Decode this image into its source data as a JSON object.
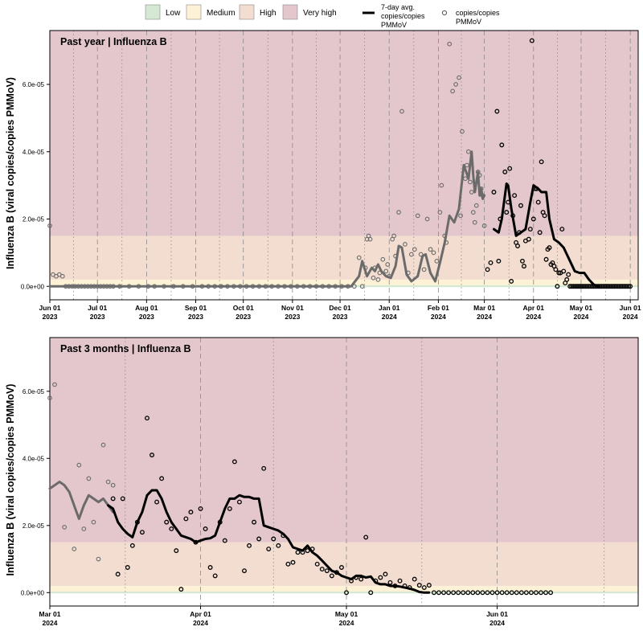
{
  "colors": {
    "low": "#d5e8d4",
    "medium": "#fdf1d6",
    "high": "#f2ddd0",
    "very_high": "#e4c7cc",
    "line_black": "#000000",
    "line_gray": "#6b6b6b"
  },
  "legend": {
    "levels": [
      {
        "label": "Low",
        "color": "#d5e8d4"
      },
      {
        "label": "Medium",
        "color": "#fdf1d6"
      },
      {
        "label": "High",
        "color": "#f2ddd0"
      },
      {
        "label": "Very high",
        "color": "#e4c7cc"
      }
    ],
    "line_label_1": "7-day avg.",
    "line_label_2": "copies/copies",
    "line_label_3": "PMMoV",
    "point_label_1": "copies/copies",
    "point_label_2": "PMMoV"
  },
  "chart_data": [
    {
      "type": "line",
      "title": "Past year  |  Influenza B",
      "ylabel": "Influenza B (viral copies/copies PMMoV)",
      "ylim": [
        -4e-06,
        7.6e-05
      ],
      "yticks": [
        0,
        2e-05,
        4e-05,
        6e-05
      ],
      "ytick_labels": [
        "0.0e+00",
        "2.0e-05",
        "4.0e-05",
        "6.0e-05"
      ],
      "xlim": [
        0,
        371
      ],
      "xticks": [
        {
          "x": 0,
          "label1": "Jun 01",
          "label2": "2023"
        },
        {
          "x": 30,
          "label1": "Jul 01",
          "label2": "2023"
        },
        {
          "x": 61,
          "label1": "Aug 01",
          "label2": "2023"
        },
        {
          "x": 92,
          "label1": "Sep 01",
          "label2": "2023"
        },
        {
          "x": 122,
          "label1": "Oct 01",
          "label2": "2023"
        },
        {
          "x": 153,
          "label1": "Nov 01",
          "label2": "2023"
        },
        {
          "x": 183,
          "label1": "Dec 01",
          "label2": "2023"
        },
        {
          "x": 214,
          "label1": "Jan 01",
          "label2": "2024"
        },
        {
          "x": 245,
          "label1": "Feb 01",
          "label2": "2024"
        },
        {
          "x": 274,
          "label1": "Mar 01",
          "label2": "2024"
        },
        {
          "x": 305,
          "label1": "Apr 01",
          "label2": "2024"
        },
        {
          "x": 335,
          "label1": "May 01",
          "label2": "2024"
        },
        {
          "x": 366,
          "label1": "Jun 01",
          "label2": "2024"
        }
      ],
      "bands": {
        "low_max": 3e-07,
        "medium_max": 2e-06,
        "high_max": 1.5e-05
      },
      "series": [
        {
          "name": "7-day avg. copies/copies PMMoV (older)",
          "color": "#6b6b6b",
          "x": [
            0,
            100,
            150,
            190,
            195,
            197,
            200,
            203,
            205,
            207,
            209,
            212,
            215,
            218,
            220,
            222,
            225,
            228,
            232,
            235,
            237,
            240,
            243,
            246,
            249,
            252,
            255,
            258,
            261,
            264,
            266,
            267,
            268,
            270,
            271,
            272,
            273,
            274
          ],
          "y": [
            0,
            0,
            0,
            0,
            3e-06,
            7.5e-06,
            3e-06,
            5.5e-06,
            4.5e-06,
            6.5e-06,
            4.5e-06,
            3e-06,
            2.5e-06,
            6e-06,
            1.2e-05,
            1.15e-05,
            3.5e-06,
            1.5e-06,
            3e-06,
            9e-06,
            9.5e-06,
            4e-06,
            1.5e-06,
            7e-06,
            1.3e-05,
            2.1e-05,
            1.9e-05,
            2.3e-05,
            3.6e-05,
            3.2e-05,
            4e-05,
            3.3e-05,
            2.8e-05,
            3.4e-05,
            2.7e-05,
            2.9e-05,
            2.6e-05,
            2.7e-05
          ]
        },
        {
          "name": "7-day avg. copies/copies PMMoV (recent)",
          "color": "#000000",
          "x": [
            280,
            283,
            285,
            288,
            289,
            291,
            294,
            297,
            300,
            303,
            305,
            308,
            310,
            313,
            315,
            318,
            321,
            324,
            328,
            331,
            334,
            337,
            340,
            343,
            346
          ],
          "y": [
            1.7e-05,
            1.6e-05,
            2e-05,
            3.05e-05,
            3e-05,
            2.3e-05,
            1.5e-05,
            1.6e-05,
            1.7e-05,
            2.5e-05,
            3e-05,
            2.9e-05,
            2.8e-05,
            2.8e-05,
            2e-05,
            1.4e-05,
            1.3e-05,
            1.15e-05,
            7.5e-06,
            4.5e-06,
            4e-06,
            4e-06,
            2e-06,
            5e-07,
            0
          ]
        }
      ],
      "points_gray": {
        "x": [
          0,
          2,
          4,
          6,
          8,
          10,
          12,
          14,
          16,
          18,
          20,
          22,
          24,
          26,
          28,
          30,
          32,
          34,
          36,
          38,
          40,
          44,
          50,
          56,
          62,
          66,
          72,
          78,
          84,
          90,
          96,
          100,
          104,
          108,
          112,
          116,
          120,
          124,
          128,
          132,
          136,
          140,
          144,
          148,
          152,
          156,
          160,
          164,
          168,
          172,
          176,
          180,
          184,
          188,
          192,
          195,
          197,
          199,
          200,
          201,
          202,
          204,
          205,
          207,
          208,
          210,
          212,
          213,
          214,
          216,
          217,
          218,
          220,
          222,
          224,
          226,
          228,
          230,
          232,
          234,
          236,
          238,
          240,
          242,
          244,
          246,
          247,
          249,
          250,
          252,
          254,
          256,
          258,
          259,
          260,
          262,
          263,
          264,
          265,
          266,
          267,
          268,
          269,
          270,
          271,
          272,
          273,
          274
        ],
        "y": [
          1.8e-05,
          3.5e-06,
          3e-06,
          3.5e-06,
          3e-06,
          0,
          0,
          0,
          0,
          0,
          0,
          0,
          0,
          0,
          0,
          0,
          0,
          0,
          0,
          0,
          0,
          0,
          0,
          0,
          0,
          0,
          0,
          0,
          0,
          0,
          0,
          0,
          0,
          0,
          0,
          0,
          0,
          0,
          0,
          0,
          0,
          0,
          0,
          0,
          0,
          0,
          0,
          0,
          0,
          0,
          0,
          0,
          0,
          0,
          0,
          8.5e-06,
          0,
          5.5e-06,
          1.4e-05,
          1.5e-05,
          1.4e-05,
          2.5e-06,
          5.5e-06,
          2e-06,
          4e-06,
          8e-06,
          4.5e-06,
          6.5e-06,
          3e-06,
          1.4e-05,
          1.5e-05,
          9e-06,
          2.2e-05,
          5.2e-05,
          1.25e-05,
          4e-06,
          9.5e-06,
          1.1e-05,
          2.1e-05,
          9.5e-06,
          5e-06,
          2e-05,
          1.1e-05,
          1e-05,
          7.5e-06,
          2.2e-05,
          3e-05,
          1.5e-05,
          1.3e-05,
          7.2e-05,
          5.8e-05,
          6e-05,
          6.2e-05,
          2.1e-05,
          4.6e-05,
          3.2e-05,
          3.6e-05,
          4e-05,
          3.1e-05,
          2.8e-05,
          2.2e-05,
          1.9e-05,
          2.4e-05,
          3.4e-05,
          3.3e-05,
          2.9e-05,
          2.7e-05,
          1.8e-05
        ]
      },
      "points_black": {
        "x": [
          276,
          278,
          280,
          282,
          283,
          284,
          285,
          287,
          288,
          289,
          290,
          291,
          292,
          293,
          294,
          295,
          296,
          297,
          298,
          299,
          300,
          302,
          303,
          304,
          305,
          306,
          307,
          308,
          309,
          310,
          311,
          312,
          313,
          314,
          315,
          316,
          317,
          318,
          319,
          320,
          321,
          322,
          323,
          324,
          325,
          326,
          327,
          328,
          329,
          330,
          331,
          332,
          333,
          334,
          335,
          336,
          337,
          338,
          339,
          340,
          341,
          342,
          343,
          344,
          345,
          346,
          347,
          348,
          349,
          350,
          351,
          352,
          353,
          354,
          355,
          356,
          357,
          358,
          359,
          360,
          361,
          362,
          363,
          364,
          365,
          366
        ],
        "y": [
          5e-06,
          7e-06,
          2.8e-05,
          5.2e-05,
          7.5e-06,
          2e-05,
          4.2e-05,
          3.4e-05,
          2.2e-05,
          2.5e-05,
          3.5e-05,
          1.5e-06,
          2.1e-05,
          2.7e-05,
          1.3e-05,
          1.2e-05,
          1.6e-05,
          2.4e-05,
          7.5e-06,
          6e-06,
          1.35e-05,
          1.4e-05,
          1.7e-05,
          7.3e-05,
          2e-05,
          2.9e-05,
          2.9e-05,
          2.5e-05,
          1.6e-05,
          3.7e-05,
          2.2e-05,
          2.1e-05,
          8e-06,
          1.1e-05,
          1.15e-05,
          6.5e-06,
          7e-06,
          6e-06,
          5e-06,
          0,
          4e-06,
          4e-06,
          1.7e-05,
          4.5e-06,
          1e-06,
          2e-06,
          3.5e-06,
          0,
          0,
          0,
          0,
          0,
          0,
          0,
          0,
          0,
          0,
          0,
          0,
          0,
          0,
          0,
          0,
          0,
          0,
          0,
          0,
          0,
          0,
          0,
          0,
          0,
          0,
          0,
          0,
          0,
          0,
          0,
          0,
          0,
          0,
          0,
          0,
          0,
          0,
          0
        ]
      }
    },
    {
      "type": "line",
      "title": "Past 3 months  |  Influenza B",
      "ylabel": "Influenza B (viral copies/copies PMMoV)",
      "ylim": [
        -4e-06,
        7.6e-05
      ],
      "yticks": [
        0,
        2e-05,
        4e-05,
        6e-05
      ],
      "ytick_labels": [
        "0.0e+00",
        "2.0e-05",
        "4.0e-05",
        "6.0e-05"
      ],
      "xlim": [
        0,
        121
      ],
      "xticks": [
        {
          "x": 0,
          "label1": "Mar 01",
          "label2": "2024"
        },
        {
          "x": 31,
          "label1": "Apr 01",
          "label2": "2024"
        },
        {
          "x": 61,
          "label1": "May 01",
          "label2": "2024"
        },
        {
          "x": 92,
          "label1": "Jun 01",
          "label2": "2024"
        }
      ],
      "bands": {
        "low_max": 3e-07,
        "medium_max": 2e-06,
        "high_max": 1.5e-05
      },
      "series": [
        {
          "name": "7-day avg. copies/copies PMMoV (older)",
          "color": "#6b6b6b",
          "x": [
            0,
            1,
            2,
            3,
            4,
            5,
            6,
            7,
            8,
            9,
            10,
            11,
            12,
            13
          ],
          "y": [
            3.1e-05,
            3.2e-05,
            3.3e-05,
            3.2e-05,
            3e-05,
            2.6e-05,
            2.2e-05,
            2.6e-05,
            2.9e-05,
            2.8e-05,
            2.7e-05,
            2.8e-05,
            2.6e-05,
            2.4e-05
          ]
        },
        {
          "name": "7-day avg. copies/copies PMMoV (recent)",
          "color": "#000000",
          "x": [
            12,
            13,
            14,
            15,
            16,
            17,
            18,
            19,
            20,
            21,
            22,
            23,
            24,
            25,
            26,
            27,
            28,
            29,
            30,
            31,
            32,
            33,
            34,
            35,
            36,
            37,
            38,
            39,
            40,
            41,
            42,
            43,
            44,
            45,
            46,
            47,
            48,
            49,
            50,
            51,
            52,
            53,
            54,
            55,
            56,
            57,
            58,
            59,
            60,
            61,
            62,
            63,
            64,
            65,
            66,
            67,
            68,
            69,
            70,
            71,
            72,
            73,
            74,
            75,
            76,
            77,
            78
          ],
          "y": [
            2.6e-05,
            2.5e-05,
            2.1e-05,
            1.9e-05,
            1.75e-05,
            1.65e-05,
            2.1e-05,
            2.4e-05,
            2.9e-05,
            3.05e-05,
            3.05e-05,
            2.8e-05,
            2.4e-05,
            2.1e-05,
            1.9e-05,
            1.7e-05,
            1.65e-05,
            1.6e-05,
            1.5e-05,
            1.55e-05,
            1.6e-05,
            1.62e-05,
            1.7e-05,
            2.1e-05,
            2.5e-05,
            2.8e-05,
            2.8e-05,
            2.9e-05,
            2.85e-05,
            2.85e-05,
            2.8e-05,
            2.8e-05,
            2e-05,
            1.95e-05,
            1.9e-05,
            1.85e-05,
            1.75e-05,
            1.6e-05,
            1.35e-05,
            1.3e-05,
            1.25e-05,
            1.4e-05,
            1.2e-05,
            1.1e-05,
            9.5e-06,
            8e-06,
            6.5e-06,
            6e-06,
            5e-06,
            4.5e-06,
            4e-06,
            5e-06,
            5e-06,
            4.5e-06,
            4.8e-06,
            3e-06,
            2.5e-06,
            2.5e-06,
            2e-06,
            2e-06,
            1.8e-06,
            1.5e-06,
            1.2e-06,
            8e-07,
            2e-07,
            0,
            0
          ]
        }
      ],
      "points_gray": {
        "x": [
          0,
          1,
          3,
          5,
          6,
          7,
          8,
          9,
          10,
          11,
          12,
          13
        ],
        "y": [
          5.8e-05,
          6.2e-05,
          1.95e-05,
          1.3e-05,
          3.8e-05,
          1.9e-05,
          3.4e-05,
          2.1e-05,
          1e-05,
          4.4e-05,
          3.3e-05,
          3.2e-05
        ]
      },
      "points_black": {
        "x": [
          13,
          14,
          15,
          16,
          17,
          18,
          19,
          20,
          21,
          22,
          23,
          24,
          25,
          26,
          27,
          28,
          29,
          30,
          31,
          32,
          33,
          34,
          35,
          36,
          37,
          38,
          39,
          40,
          41,
          42,
          43,
          44,
          45,
          46,
          47,
          48,
          49,
          50,
          51,
          52,
          53,
          54,
          55,
          56,
          57,
          58,
          59,
          60,
          61,
          62,
          63,
          64,
          65,
          66,
          67,
          68,
          69,
          70,
          71,
          72,
          73,
          74,
          75,
          76,
          77,
          78,
          79,
          80,
          81,
          82,
          83,
          84,
          85,
          86,
          87,
          88,
          89,
          90,
          91,
          92,
          93,
          94,
          95,
          96,
          97,
          98,
          99,
          100,
          101,
          102,
          103
        ],
        "y": [
          2.8e-05,
          5.5e-06,
          2.8e-05,
          7.5e-06,
          1.4e-05,
          2.1e-05,
          1.8e-05,
          5.2e-05,
          4.1e-05,
          2.7e-05,
          3.4e-05,
          2.1e-05,
          1.9e-05,
          1.25e-05,
          1e-06,
          2.2e-05,
          2.4e-05,
          1.5e-05,
          2.5e-05,
          1.9e-05,
          7.5e-06,
          5e-06,
          2.1e-05,
          1.55e-05,
          2.5e-05,
          3.9e-05,
          2.7e-05,
          6.5e-06,
          1.4e-05,
          2.1e-05,
          1.6e-05,
          3.7e-05,
          1.3e-05,
          1.6e-05,
          1.4e-05,
          1.7e-05,
          8.5e-06,
          9e-06,
          1.2e-05,
          1.2e-05,
          1.25e-05,
          1.3e-05,
          8.5e-06,
          7e-06,
          6.5e-06,
          5e-06,
          6e-06,
          7.5e-06,
          0,
          3.5e-06,
          4.5e-06,
          4e-06,
          1.65e-05,
          0,
          3.5e-06,
          4.5e-06,
          5.5e-06,
          3e-06,
          2e-06,
          3.5e-06,
          2e-06,
          1.5e-06,
          4e-06,
          2.2e-06,
          1.5e-06,
          2.2e-06,
          0,
          0,
          0,
          0,
          0,
          0,
          0,
          0,
          0,
          0,
          0,
          0,
          0,
          0,
          0,
          0,
          0,
          0,
          0,
          0,
          0,
          0,
          0,
          0,
          0
        ]
      }
    }
  ]
}
